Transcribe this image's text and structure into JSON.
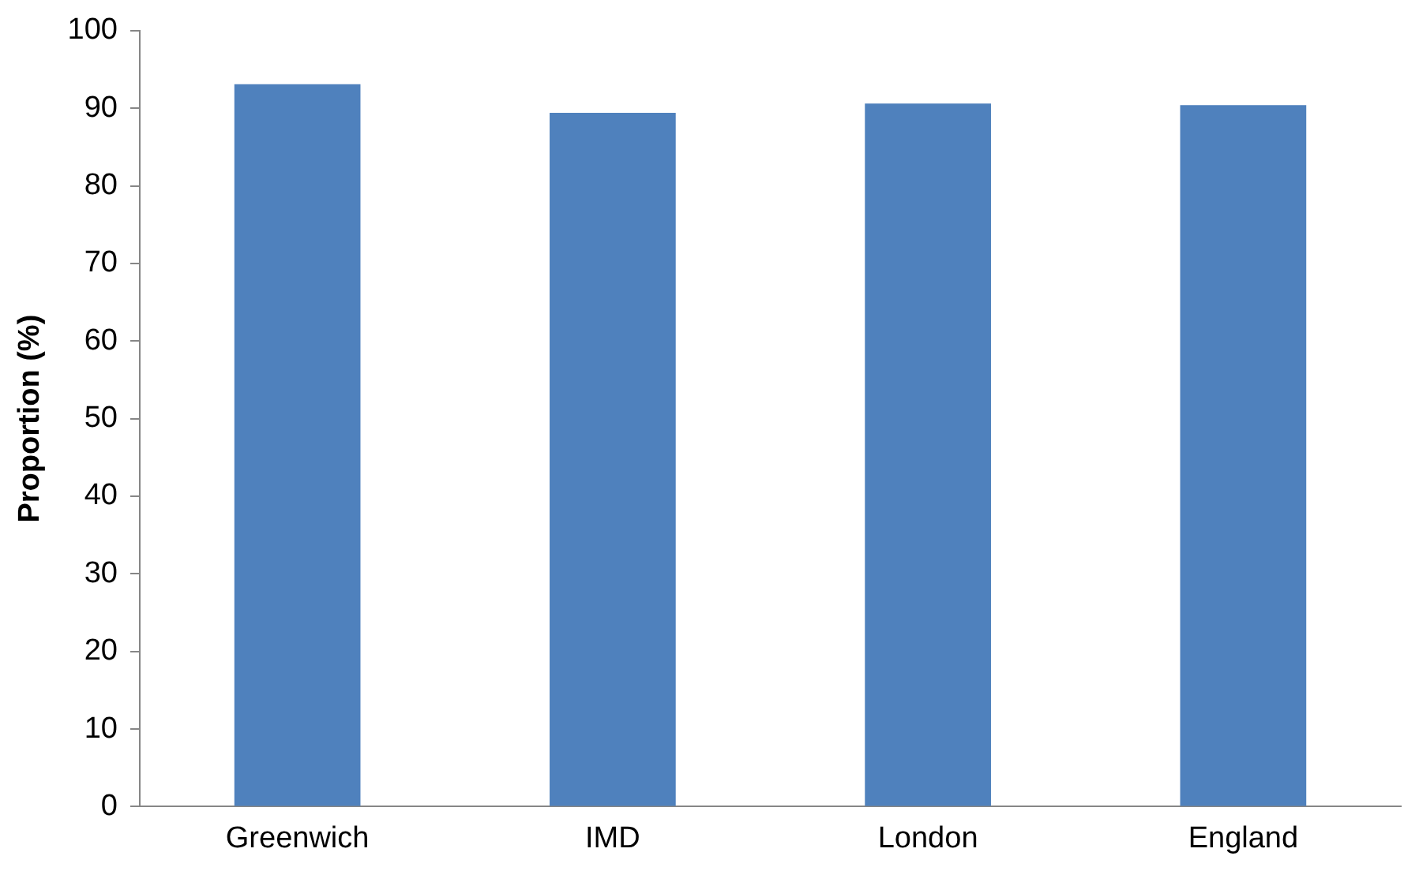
{
  "chart_data": {
    "type": "bar",
    "ylabel": "Proportion (%)",
    "categories": [
      "Greenwich",
      "IMD",
      "London",
      "England"
    ],
    "values": [
      93.1,
      89.4,
      90.6,
      90.4
    ],
    "color": "#4f81bd",
    "ylim": [
      0,
      100
    ],
    "yticks": [
      0,
      10,
      20,
      30,
      40,
      50,
      60,
      70,
      80,
      90,
      100
    ],
    "grid": false,
    "legend": false
  }
}
